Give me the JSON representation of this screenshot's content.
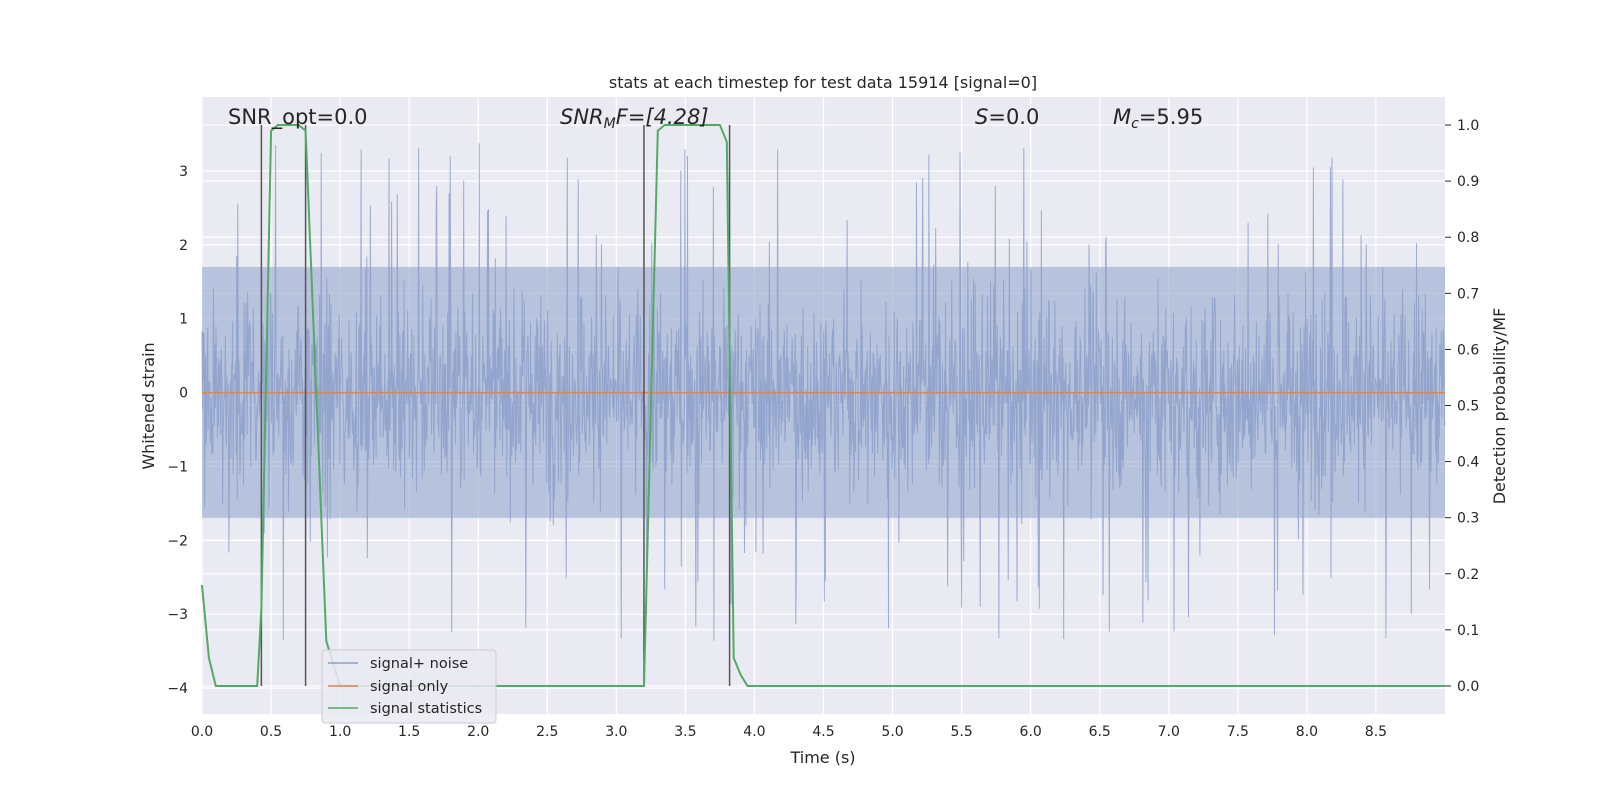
{
  "chart_data": {
    "type": "line",
    "title": "stats at each timestep for test data 15914 [signal=0]",
    "xlabel": "Time (s)",
    "ylabel": "Whitened strain",
    "y2label": "Detection probability/MF",
    "xlim": [
      0.0,
      9.0
    ],
    "ylim": [
      -4.35,
      4.0
    ],
    "y2lim": [
      -0.05,
      1.05
    ],
    "xticks": [
      "0.0",
      "0.5",
      "1.0",
      "1.5",
      "2.0",
      "2.5",
      "3.0",
      "3.5",
      "4.0",
      "4.5",
      "5.0",
      "5.5",
      "6.0",
      "6.5",
      "7.0",
      "7.5",
      "8.0",
      "8.5"
    ],
    "yticks": [
      "3",
      "2",
      "1",
      "0",
      "−1",
      "−2",
      "−3",
      "−4"
    ],
    "y2ticks": [
      "1.0",
      "0.9",
      "0.8",
      "0.7",
      "0.6",
      "0.5",
      "0.4",
      "0.3",
      "0.2",
      "0.1",
      "0.0"
    ],
    "grid": true,
    "legend_position": "lower-left",
    "annotations": {
      "snr_opt": "SNR_opt=0.0",
      "snr_mf_main": "SNR",
      "snr_mf_sub": "M",
      "snr_mf_rest": "F=[4.28]",
      "s_main": "S",
      "s_rest": "=0.0",
      "mc_main": "M",
      "mc_sub": "c",
      "mc_rest": "=5.95"
    },
    "series": [
      {
        "name": "signal+ noise",
        "color": "#8da0cb",
        "description_values": {
          "x_start": 0.0,
          "x_end": 9.0,
          "typical_min": -2.0,
          "typical_max": 2.0,
          "peak_max": 3.6,
          "peak_min": -4.0
        }
      },
      {
        "name": "signal only",
        "color": "#dd8452",
        "x": [
          0.0,
          9.0
        ],
        "y": [
          0.0,
          0.0
        ]
      },
      {
        "name": "signal statistics",
        "color": "#55a868",
        "axis": "right",
        "x": [
          0.0,
          0.05,
          0.1,
          0.2,
          0.3,
          0.4,
          0.43,
          0.5,
          0.55,
          0.7,
          0.75,
          0.9,
          1.0,
          1.5,
          2.0,
          2.5,
          3.0,
          3.2,
          3.3,
          3.35,
          3.5,
          3.7,
          3.75,
          3.8,
          3.85,
          3.9,
          3.95,
          4.0,
          5.0,
          6.0,
          7.0,
          8.0,
          9.0
        ],
        "y": [
          0.18,
          0.05,
          0.0,
          0.0,
          0.0,
          0.0,
          0.14,
          0.99,
          1.0,
          1.0,
          0.99,
          0.08,
          0.0,
          0.0,
          0.0,
          0.0,
          0.0,
          0.0,
          0.99,
          1.0,
          1.0,
          1.0,
          1.0,
          0.97,
          0.05,
          0.02,
          0.0,
          0.0,
          0.0,
          0.0,
          0.0,
          0.0,
          0.0
        ]
      }
    ],
    "vertical_lines_x": [
      0.43,
      0.75,
      3.2,
      3.82
    ]
  },
  "colors": {
    "axes_bg": "#eaeaf2",
    "grid": "#ffffff",
    "noise": "#8da0cb",
    "signal": "#dd8452",
    "stats": "#55a868",
    "vline": "#555555"
  }
}
